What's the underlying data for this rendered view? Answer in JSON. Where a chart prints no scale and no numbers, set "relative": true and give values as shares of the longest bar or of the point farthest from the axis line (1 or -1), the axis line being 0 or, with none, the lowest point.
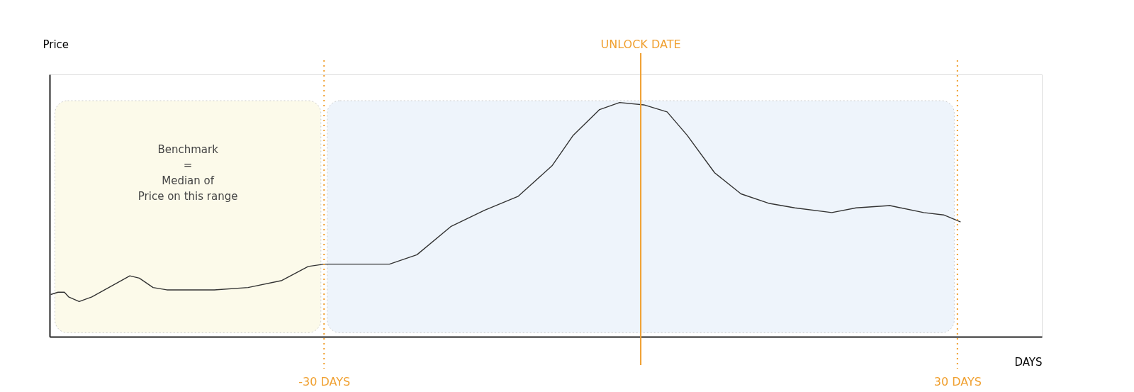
{
  "chart_data": {
    "type": "line",
    "relative": true,
    "xlabel": "DAYS",
    "ylabel": "Price",
    "tick_labels": "x",
    "grid": false,
    "marker": "none",
    "line_style": "solid",
    "xlim": [
      -56,
      38
    ],
    "xticks": [
      {
        "value": -30,
        "label": "-30 DAYS"
      },
      {
        "value": 30,
        "label": "30 DAYS"
      }
    ],
    "x": [
      -55.9,
      -55.2,
      -54.6,
      -54.2,
      -53.2,
      -52.0,
      -50.0,
      -48.4,
      -47.5,
      -46.2,
      -44.9,
      -40.4,
      -37.2,
      -34.0,
      -31.5,
      -30.0,
      -23.8,
      -21.2,
      -18.0,
      -14.8,
      -11.6,
      -8.4,
      -6.4,
      -3.9,
      -2.0,
      0.3,
      2.5,
      4.4,
      7.0,
      9.5,
      12.1,
      14.6,
      18.1,
      20.4,
      23.6,
      26.8,
      28.7,
      30.3
    ],
    "series": [
      {
        "color": "#333333",
        "values": [
          0.18,
          0.19,
          0.19,
          0.17,
          0.15,
          0.17,
          0.22,
          0.26,
          0.25,
          0.21,
          0.2,
          0.2,
          0.21,
          0.24,
          0.3,
          0.31,
          0.31,
          0.35,
          0.47,
          0.54,
          0.6,
          0.73,
          0.86,
          0.97,
          1.0,
          0.99,
          0.96,
          0.86,
          0.7,
          0.61,
          0.57,
          0.55,
          0.53,
          0.55,
          0.56,
          0.53,
          0.52,
          0.49
        ]
      }
    ],
    "bands": [
      {
        "axis": "x",
        "from": -55.5,
        "to": -30.3,
        "label": "Benchmark\n=\nMedian of\nPrice on this range",
        "color": "#fcfaea"
      },
      {
        "axis": "x",
        "from": -29.7,
        "to": 29.7,
        "label": null,
        "color": "#eef4fb"
      }
    ],
    "ref_lines": [
      {
        "axis": "x",
        "value": -30,
        "label": null,
        "color": "#f0a030",
        "line_style": "dotted"
      },
      {
        "axis": "x",
        "value": 0,
        "label": "UNLOCK DATE",
        "color": "#f0a030",
        "line_style": "solid"
      },
      {
        "axis": "x",
        "value": 30,
        "label": null,
        "color": "#f0a030",
        "line_style": "dotted"
      }
    ]
  }
}
